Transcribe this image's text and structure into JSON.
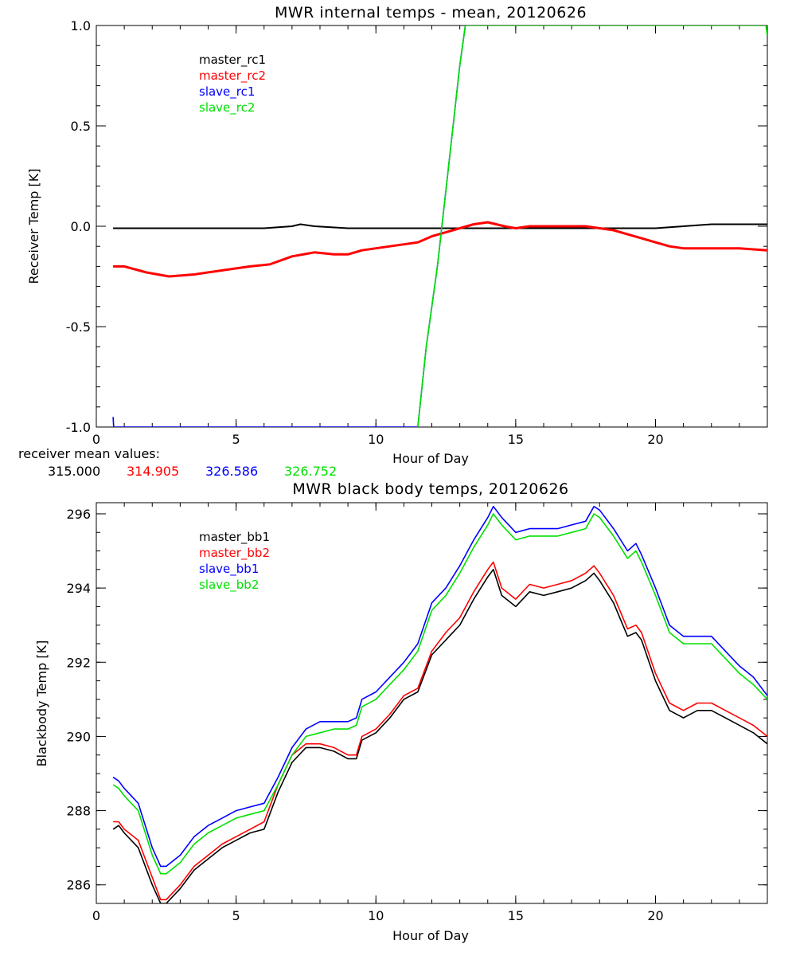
{
  "chart_data": [
    {
      "type": "line",
      "title": "MWR internal temps - mean, 20120626",
      "xlabel": "Hour of Day",
      "ylabel": "Receiver Temp [K]",
      "xlim": [
        0,
        24
      ],
      "ylim": [
        -1.0,
        1.0
      ],
      "xticks": [
        0,
        5,
        10,
        15,
        20
      ],
      "xtick_labels": [
        "0",
        "5",
        "10",
        "15",
        "20"
      ],
      "yticks": [
        -1.0,
        -0.5,
        0.0,
        0.5,
        1.0
      ],
      "ytick_labels": [
        "-1.0",
        "-0.5",
        "0.0",
        "0.5",
        "1.0"
      ],
      "legend_position": "top-left",
      "grid": false,
      "mean_values_label": "receiver mean values:",
      "mean_values": [
        "315.000",
        "314.905",
        "326.586",
        "326.752"
      ],
      "series": [
        {
          "name": "master_rc1",
          "color": "#000000",
          "x": [
            0.6,
            2,
            4,
            6,
            7,
            7.3,
            7.8,
            9,
            11,
            13,
            14.3,
            15,
            17,
            19,
            20,
            21,
            22,
            22.8,
            24
          ],
          "y": [
            -0.01,
            -0.01,
            -0.01,
            -0.01,
            0.0,
            0.01,
            0.0,
            -0.01,
            -0.01,
            -0.01,
            -0.01,
            -0.01,
            -0.01,
            -0.01,
            -0.01,
            0.0,
            0.01,
            0.01,
            0.01
          ]
        },
        {
          "name": "master_rc2",
          "color": "#ff0000",
          "x": [
            0.6,
            1,
            1.8,
            2.6,
            3.5,
            4.5,
            5.5,
            6.2,
            7,
            7.8,
            8.5,
            9,
            9.5,
            10,
            10.5,
            11,
            11.5,
            12,
            12.5,
            13,
            13.5,
            14,
            14.3,
            14.6,
            15,
            15.5,
            16,
            16.5,
            17,
            17.5,
            18,
            18.5,
            19,
            19.5,
            20,
            20.5,
            21,
            22,
            23,
            24
          ],
          "y": [
            -0.2,
            -0.2,
            -0.23,
            -0.25,
            -0.24,
            -0.22,
            -0.2,
            -0.19,
            -0.15,
            -0.13,
            -0.14,
            -0.14,
            -0.12,
            -0.11,
            -0.1,
            -0.09,
            -0.08,
            -0.05,
            -0.03,
            -0.01,
            0.01,
            0.02,
            0.01,
            0.0,
            -0.01,
            0.0,
            0.0,
            0.0,
            0.0,
            0.0,
            -0.01,
            -0.02,
            -0.04,
            -0.06,
            -0.08,
            -0.1,
            -0.11,
            -0.11,
            -0.11,
            -0.12
          ]
        },
        {
          "name": "slave_rc1",
          "color": "#0000ff",
          "x": [
            0.6,
            0.62,
            11.5,
            11.8,
            12.2,
            12.6,
            13.0,
            13.2
          ],
          "y": [
            -0.95,
            -1.0,
            -1.0,
            -0.6,
            -0.2,
            0.3,
            0.8,
            1.0
          ]
        },
        {
          "name": "slave_rc2",
          "color": "#00e000",
          "x": [
            11.5,
            11.8,
            12.2,
            12.6,
            13.0,
            13.2,
            23.95,
            24.0
          ],
          "y": [
            -1.0,
            -0.6,
            -0.2,
            0.3,
            0.8,
            1.0,
            1.0,
            0.95
          ]
        }
      ]
    },
    {
      "type": "line",
      "title": "MWR black body temps, 20120626",
      "xlabel": "Hour of Day",
      "ylabel": "Blackbody Temp [K]",
      "xlim": [
        0,
        24
      ],
      "ylim": [
        285.5,
        296.3
      ],
      "xticks": [
        0,
        5,
        10,
        15,
        20
      ],
      "xtick_labels": [
        "0",
        "5",
        "10",
        "15",
        "20"
      ],
      "yticks": [
        286,
        288,
        290,
        292,
        294,
        296
      ],
      "ytick_labels": [
        "286",
        "288",
        "290",
        "292",
        "294",
        "296"
      ],
      "legend_position": "top-left",
      "grid": false,
      "series": [
        {
          "name": "master_bb1",
          "color": "#000000",
          "x": [
            0.6,
            0.8,
            1,
            1.5,
            2,
            2.3,
            2.5,
            3,
            3.5,
            4,
            4.5,
            5,
            5.5,
            6,
            6.5,
            7,
            7.5,
            8,
            8.5,
            9,
            9.3,
            9.5,
            10,
            10.5,
            11,
            11.5,
            12,
            12.5,
            13,
            13.5,
            14,
            14.2,
            14.5,
            15,
            15.5,
            16,
            16.5,
            17,
            17.5,
            17.8,
            18,
            18.5,
            19,
            19.3,
            19.5,
            20,
            20.5,
            21,
            21.5,
            22,
            22.5,
            23,
            23.5,
            24
          ],
          "y": [
            287.5,
            287.6,
            287.4,
            287.0,
            286.0,
            285.5,
            285.5,
            285.9,
            286.4,
            286.7,
            287.0,
            287.2,
            287.4,
            287.5,
            288.5,
            289.3,
            289.7,
            289.7,
            289.6,
            289.4,
            289.4,
            289.9,
            290.1,
            290.5,
            291.0,
            291.2,
            292.2,
            292.6,
            293.0,
            293.7,
            294.3,
            294.5,
            293.8,
            293.5,
            293.9,
            293.8,
            293.9,
            294.0,
            294.2,
            294.4,
            294.2,
            293.6,
            292.7,
            292.8,
            292.6,
            291.5,
            290.7,
            290.5,
            290.7,
            290.7,
            290.5,
            290.3,
            290.1,
            289.8
          ]
        },
        {
          "name": "master_bb2",
          "color": "#ff0000",
          "x": [
            0.6,
            0.8,
            1,
            1.5,
            2,
            2.3,
            2.5,
            3,
            3.5,
            4,
            4.5,
            5,
            5.5,
            6,
            6.5,
            7,
            7.5,
            8,
            8.5,
            9,
            9.3,
            9.5,
            10,
            10.5,
            11,
            11.5,
            12,
            12.5,
            13,
            13.5,
            14,
            14.2,
            14.5,
            15,
            15.5,
            16,
            16.5,
            17,
            17.5,
            17.8,
            18,
            18.5,
            19,
            19.3,
            19.5,
            20,
            20.5,
            21,
            21.5,
            22,
            22.5,
            23,
            23.5,
            24
          ],
          "y": [
            287.7,
            287.7,
            287.5,
            287.2,
            286.2,
            285.6,
            285.6,
            286.0,
            286.5,
            286.8,
            287.1,
            287.3,
            287.5,
            287.7,
            288.7,
            289.5,
            289.8,
            289.8,
            289.7,
            289.5,
            289.5,
            290.0,
            290.2,
            290.6,
            291.1,
            291.3,
            292.3,
            292.8,
            293.2,
            293.9,
            294.5,
            294.7,
            294.0,
            293.7,
            294.1,
            294.0,
            294.1,
            294.2,
            294.4,
            294.6,
            294.4,
            293.8,
            292.9,
            293.0,
            292.8,
            291.7,
            290.9,
            290.7,
            290.9,
            290.9,
            290.7,
            290.5,
            290.3,
            290.0
          ]
        },
        {
          "name": "slave_bb1",
          "color": "#0000ff",
          "x": [
            0.6,
            0.8,
            1,
            1.5,
            2,
            2.3,
            2.5,
            3,
            3.5,
            4,
            4.5,
            5,
            5.5,
            6,
            6.5,
            7,
            7.5,
            8,
            8.5,
            9,
            9.3,
            9.5,
            10,
            10.5,
            11,
            11.5,
            12,
            12.5,
            13,
            13.5,
            14,
            14.2,
            14.5,
            15,
            15.5,
            16,
            16.5,
            17,
            17.5,
            17.8,
            18,
            18.5,
            19,
            19.3,
            19.5,
            20,
            20.5,
            21,
            21.5,
            22,
            22.5,
            23,
            23.5,
            24
          ],
          "y": [
            288.9,
            288.8,
            288.6,
            288.2,
            287.0,
            286.5,
            286.5,
            286.8,
            287.3,
            287.6,
            287.8,
            288.0,
            288.1,
            288.2,
            288.9,
            289.7,
            290.2,
            290.4,
            290.4,
            290.4,
            290.5,
            291.0,
            291.2,
            291.6,
            292.0,
            292.5,
            293.6,
            294.0,
            294.6,
            295.3,
            295.9,
            296.2,
            295.9,
            295.5,
            295.6,
            295.6,
            295.6,
            295.7,
            295.8,
            296.2,
            296.1,
            295.6,
            295.0,
            295.2,
            294.9,
            294.0,
            293.0,
            292.7,
            292.7,
            292.7,
            292.3,
            291.9,
            291.6,
            291.1
          ]
        },
        {
          "name": "slave_bb2",
          "color": "#00e000",
          "x": [
            0.6,
            0.8,
            1,
            1.5,
            2,
            2.3,
            2.5,
            3,
            3.5,
            4,
            4.5,
            5,
            5.5,
            6,
            6.5,
            7,
            7.5,
            8,
            8.5,
            9,
            9.3,
            9.5,
            10,
            10.5,
            11,
            11.5,
            12,
            12.5,
            13,
            13.5,
            14,
            14.2,
            14.5,
            15,
            15.5,
            16,
            16.5,
            17,
            17.5,
            17.8,
            18,
            18.5,
            19,
            19.3,
            19.5,
            20,
            20.5,
            21,
            21.5,
            22,
            22.5,
            23,
            23.5,
            24
          ],
          "y": [
            288.7,
            288.6,
            288.4,
            288.0,
            286.8,
            286.3,
            286.3,
            286.6,
            287.1,
            287.4,
            287.6,
            287.8,
            287.9,
            288.0,
            288.7,
            289.5,
            290.0,
            290.1,
            290.2,
            290.2,
            290.3,
            290.8,
            291.0,
            291.4,
            291.8,
            292.3,
            293.4,
            293.8,
            294.4,
            295.1,
            295.7,
            296.0,
            295.7,
            295.3,
            295.4,
            295.4,
            295.4,
            295.5,
            295.6,
            296.0,
            295.9,
            295.4,
            294.8,
            295.0,
            294.7,
            293.8,
            292.8,
            292.5,
            292.5,
            292.5,
            292.1,
            291.7,
            291.4,
            291.0
          ]
        }
      ]
    }
  ]
}
